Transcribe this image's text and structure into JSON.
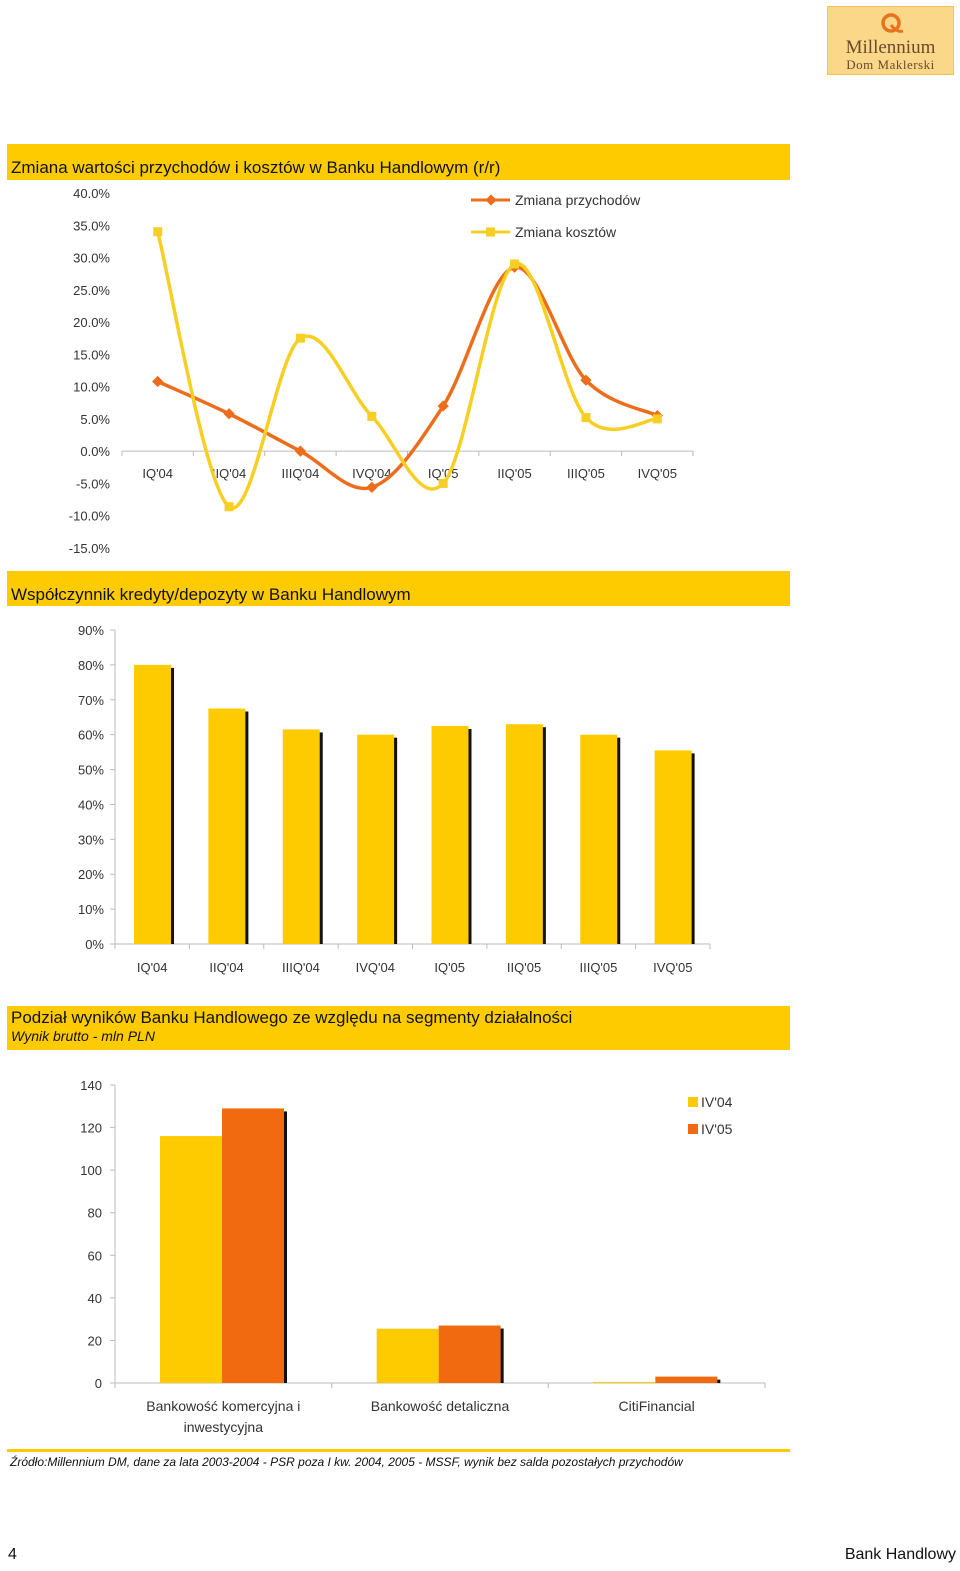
{
  "logo": {
    "brand": "Millennium",
    "sub": "Dom Maklerski",
    "colors": {
      "bg": "#fbd78a",
      "mark": "#e8731e"
    }
  },
  "colors": {
    "band": "#fecb00",
    "yellow": "#fecb00",
    "orange": "#f26a10",
    "line_orange": "#ec6e1c",
    "line_yellow": "#f7cf24"
  },
  "chart1": {
    "title": "Zmiana wartości przychodów i kosztów w Banku Handlowym (r/r)",
    "chart_data": {
      "type": "line",
      "title": "Zmiana wartości przychodów i kosztów w Banku Handlowym (r/r)",
      "categories": [
        "IQ'04",
        "IIQ'04",
        "IIIQ'04",
        "IVQ'04",
        "IQ'05",
        "IIQ'05",
        "IIIQ'05",
        "IVQ'05"
      ],
      "y_ticks": [
        "40.0%",
        "35.0%",
        "30.0%",
        "25.0%",
        "20.0%",
        "15.0%",
        "10.0%",
        "5.0%",
        "0.0%",
        "-5.0%",
        "-10.0%",
        "-15.0%"
      ],
      "ylim": [
        -15,
        40
      ],
      "series": [
        {
          "name": "Zmiana przychodów",
          "values": [
            10.8,
            5.8,
            0.0,
            -5.6,
            7.0,
            28.5,
            11.0,
            5.5
          ]
        },
        {
          "name": "Zmiana kosztów",
          "values": [
            34.0,
            -8.6,
            17.5,
            5.4,
            -5.0,
            29.0,
            5.2,
            5.0
          ]
        }
      ],
      "legend": "top-right"
    }
  },
  "chart2": {
    "title": "Współczynnik kredyty/depozyty w Banku Handlowym",
    "chart_data": {
      "type": "bar",
      "title": "Współczynnik kredyty/depozyty w Banku Handlowym",
      "categories": [
        "IQ'04",
        "IIQ'04",
        "IIIQ'04",
        "IVQ'04",
        "IQ'05",
        "IIQ'05",
        "IIIQ'05",
        "IVQ'05"
      ],
      "y_ticks": [
        "90%",
        "80%",
        "70%",
        "60%",
        "50%",
        "40%",
        "30%",
        "20%",
        "10%",
        "0%"
      ],
      "ylim": [
        0,
        90
      ],
      "values": [
        80,
        67.5,
        61.5,
        60,
        62.5,
        63,
        60,
        55.5
      ]
    }
  },
  "chart3": {
    "title": "Podział wyników Banku Handlowego ze względu na segmenty działalności",
    "subtitle": "Wynik brutto - mln PLN",
    "chart_data": {
      "type": "bar",
      "title": "Podział wyników Banku Handlowego ze względu na segmenty działalności",
      "subtitle": "Wynik brutto - mln PLN",
      "categories": [
        [
          "Bankowość komercyjna i",
          "inwestycyjna"
        ],
        [
          "Bankowość detaliczna"
        ],
        [
          "CitiFinancial"
        ]
      ],
      "y_ticks": [
        "140",
        "120",
        "100",
        "80",
        "60",
        "40",
        "20",
        "0"
      ],
      "ylim": [
        0,
        140
      ],
      "series": [
        {
          "name": "IV'04",
          "values": [
            116,
            25.5,
            0.5
          ]
        },
        {
          "name": "IV'05",
          "values": [
            129,
            27,
            3
          ]
        }
      ],
      "legend": "top-right"
    }
  },
  "footer": {
    "note": "Źródło:Millennium DM, dane za lata 2003-2004 - PSR poza I kw. 2004, 2005 - MSSF, wynik bez salda pozostałych przychodów",
    "page_number": "4",
    "page_name": "Bank Handlowy"
  }
}
